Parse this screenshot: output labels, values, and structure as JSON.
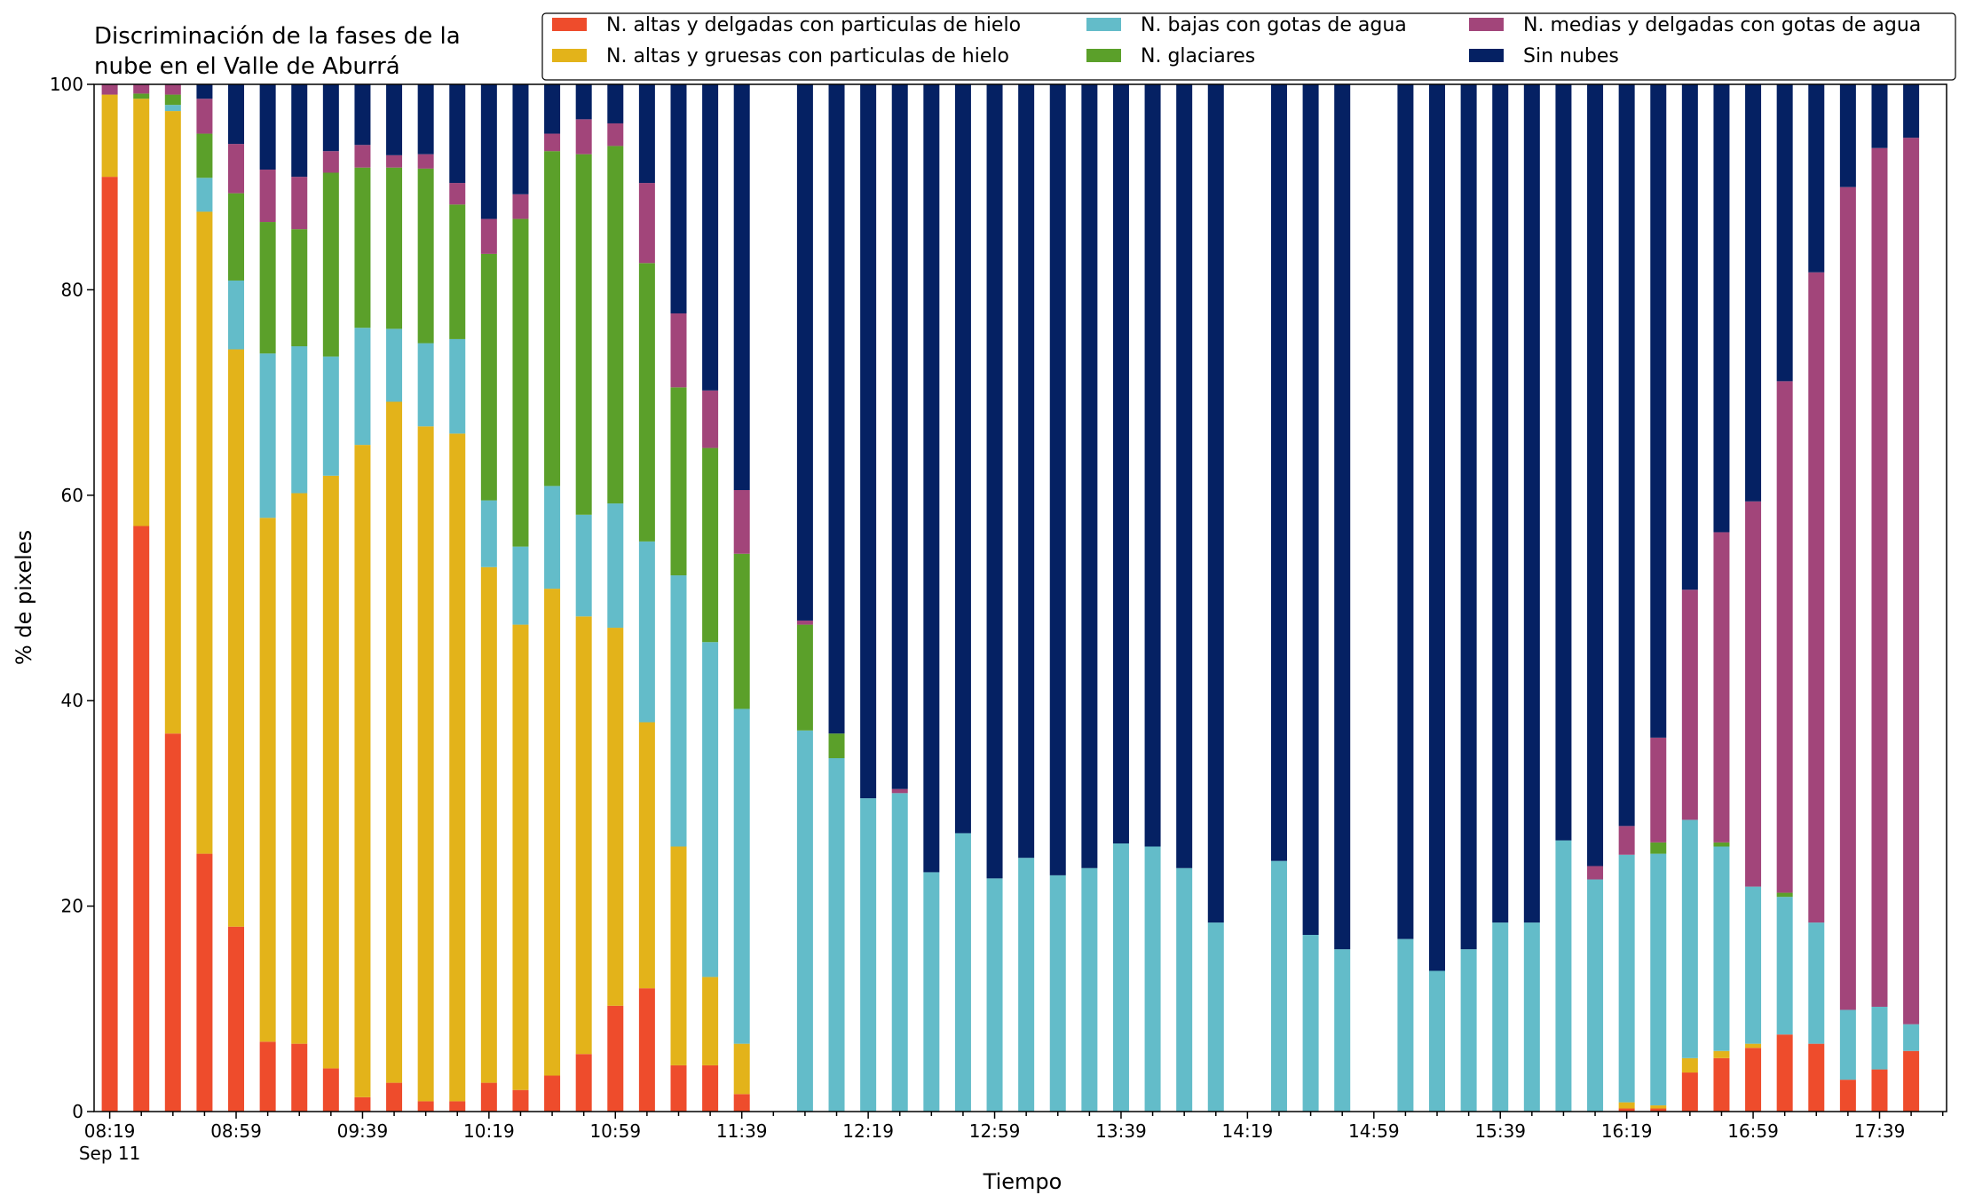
{
  "chart_data": {
    "type": "bar",
    "stacked": true,
    "title_lines": [
      "Discriminación de la fases de la",
      "nube en el Valle de Aburrá"
    ],
    "xlabel": "Tiempo",
    "ylabel": "% de pixeles",
    "ylim": [
      0,
      100
    ],
    "yticks": [
      0,
      20,
      40,
      60,
      80,
      100
    ],
    "grid": false,
    "legend_position": "top-right",
    "x_start": "08:19",
    "x_step_minutes": 10,
    "x_end": "17:59",
    "xtick_labels": [
      {
        "text": "08:19",
        "sub": "Sep 11"
      },
      {
        "text": "08:59"
      },
      {
        "text": "09:39"
      },
      {
        "text": "10:19"
      },
      {
        "text": "10:59"
      },
      {
        "text": "11:39"
      },
      {
        "text": "12:19"
      },
      {
        "text": "12:59"
      },
      {
        "text": "13:39"
      },
      {
        "text": "14:19"
      },
      {
        "text": "14:59"
      },
      {
        "text": "15:39"
      },
      {
        "text": "16:19"
      },
      {
        "text": "16:59"
      },
      {
        "text": "17:39"
      }
    ],
    "series_order": [
      "altas_delgadas",
      "altas_gruesas",
      "bajas",
      "glaciares",
      "medias",
      "sin_nubes"
    ],
    "series": [
      {
        "key": "altas_delgadas",
        "name": "N. altas y delgadas con particulas de hielo",
        "color": "#ee4c2c"
      },
      {
        "key": "altas_gruesas",
        "name": "N. altas y gruesas con particulas de hielo",
        "color": "#e3b31a"
      },
      {
        "key": "bajas",
        "name": "N. bajas con gotas de agua",
        "color": "#63bcc9"
      },
      {
        "key": "glaciares",
        "name": "N. glaciares",
        "color": "#5ba02a"
      },
      {
        "key": "medias",
        "name": "N. medias y delgadas con gotas de agua",
        "color": "#a2457a"
      },
      {
        "key": "sin_nubes",
        "name": "Sin nubes",
        "color": "#052163"
      }
    ],
    "legend_layout": [
      [
        "altas_delgadas",
        "altas_gruesas"
      ],
      [
        "bajas",
        "glaciares"
      ],
      [
        "medias",
        "sin_nubes"
      ]
    ],
    "bars": [
      {
        "time": "08:19",
        "values": [
          91.0,
          8.0,
          0.0,
          0.0,
          1.0,
          0.0
        ]
      },
      {
        "time": "08:29",
        "values": [
          57.0,
          41.6,
          0.0,
          0.5,
          0.9,
          0.0
        ]
      },
      {
        "time": "08:39",
        "values": [
          36.8,
          60.6,
          0.6,
          1.0,
          1.0,
          0.0
        ]
      },
      {
        "time": "08:49",
        "values": [
          25.1,
          62.5,
          3.3,
          4.3,
          3.4,
          1.4
        ]
      },
      {
        "time": "08:59",
        "values": [
          18.0,
          56.2,
          6.7,
          8.5,
          4.8,
          5.8
        ]
      },
      {
        "time": "09:09",
        "values": [
          6.8,
          51.0,
          16.0,
          12.8,
          5.1,
          8.3
        ]
      },
      {
        "time": "09:19",
        "values": [
          6.6,
          53.6,
          14.3,
          11.4,
          5.1,
          9.0
        ]
      },
      {
        "time": "09:29",
        "values": [
          4.2,
          57.7,
          11.6,
          17.9,
          2.1,
          6.5
        ]
      },
      {
        "time": "09:39",
        "values": [
          1.4,
          63.5,
          11.4,
          15.6,
          2.2,
          5.9
        ]
      },
      {
        "time": "09:49",
        "values": [
          2.8,
          66.3,
          7.1,
          15.7,
          1.2,
          6.9
        ]
      },
      {
        "time": "09:59",
        "values": [
          1.0,
          65.7,
          8.1,
          17.0,
          1.4,
          6.8
        ]
      },
      {
        "time": "10:09",
        "values": [
          1.0,
          65.0,
          9.2,
          13.1,
          2.1,
          9.6
        ]
      },
      {
        "time": "10:19",
        "values": [
          2.8,
          50.2,
          6.5,
          24.0,
          3.4,
          13.1
        ]
      },
      {
        "time": "10:29",
        "values": [
          2.1,
          45.3,
          7.6,
          31.9,
          2.4,
          10.7
        ]
      },
      {
        "time": "10:39",
        "values": [
          3.5,
          47.4,
          10.0,
          32.6,
          1.7,
          4.8
        ]
      },
      {
        "time": "10:49",
        "values": [
          5.6,
          42.6,
          9.9,
          35.1,
          3.4,
          3.4
        ]
      },
      {
        "time": "10:59",
        "values": [
          10.3,
          36.8,
          12.1,
          34.8,
          2.2,
          3.8
        ]
      },
      {
        "time": "11:09",
        "values": [
          12.0,
          25.9,
          17.6,
          27.1,
          7.8,
          9.6
        ]
      },
      {
        "time": "11:19",
        "values": [
          4.5,
          21.3,
          26.4,
          18.3,
          7.2,
          22.3
        ]
      },
      {
        "time": "11:29",
        "values": [
          4.5,
          8.6,
          32.6,
          18.9,
          5.6,
          29.8
        ]
      },
      {
        "time": "11:39",
        "values": [
          1.7,
          4.9,
          32.6,
          15.1,
          6.2,
          39.5
        ]
      },
      {
        "time": "11:49",
        "values": [
          0,
          0,
          0,
          0,
          0,
          0
        ]
      },
      {
        "time": "11:59",
        "values": [
          0.0,
          0.0,
          37.1,
          10.3,
          0.4,
          52.2
        ]
      },
      {
        "time": "12:09",
        "values": [
          0.0,
          0.0,
          34.4,
          2.4,
          0.0,
          63.2
        ]
      },
      {
        "time": "12:19",
        "values": [
          0.0,
          0.0,
          30.5,
          0.0,
          0.0,
          69.5
        ]
      },
      {
        "time": "12:29",
        "values": [
          0.0,
          0.0,
          31.0,
          0.0,
          0.4,
          68.6
        ]
      },
      {
        "time": "12:39",
        "values": [
          0.0,
          0.0,
          23.3,
          0.0,
          0.0,
          76.7
        ]
      },
      {
        "time": "12:49",
        "values": [
          0.0,
          0.0,
          27.1,
          0.0,
          0.0,
          72.9
        ]
      },
      {
        "time": "12:59",
        "values": [
          0.0,
          0.0,
          22.7,
          0.0,
          0.0,
          77.3
        ]
      },
      {
        "time": "13:09",
        "values": [
          0.0,
          0.0,
          24.7,
          0.0,
          0.0,
          75.3
        ]
      },
      {
        "time": "13:19",
        "values": [
          0.0,
          0.0,
          23.0,
          0.0,
          0.0,
          77.0
        ]
      },
      {
        "time": "13:29",
        "values": [
          0.0,
          0.0,
          23.7,
          0.0,
          0.0,
          76.3
        ]
      },
      {
        "time": "13:39",
        "values": [
          0.0,
          0.0,
          26.1,
          0.0,
          0.0,
          73.9
        ]
      },
      {
        "time": "13:49",
        "values": [
          0.0,
          0.0,
          25.8,
          0.0,
          0.0,
          74.2
        ]
      },
      {
        "time": "13:59",
        "values": [
          0.0,
          0.0,
          23.7,
          0.0,
          0.0,
          76.3
        ]
      },
      {
        "time": "14:09",
        "values": [
          0.0,
          0.0,
          18.4,
          0.0,
          0.0,
          81.6
        ]
      },
      {
        "time": "14:19",
        "values": [
          0,
          0,
          0,
          0,
          0,
          0
        ]
      },
      {
        "time": "14:29",
        "values": [
          0.0,
          0.0,
          24.4,
          0.0,
          0.0,
          75.6
        ]
      },
      {
        "time": "14:39",
        "values": [
          0.0,
          0.0,
          17.2,
          0.0,
          0.0,
          82.8
        ]
      },
      {
        "time": "14:49",
        "values": [
          0.0,
          0.0,
          15.8,
          0.0,
          0.0,
          84.2
        ]
      },
      {
        "time": "14:59",
        "values": [
          0,
          0,
          0,
          0,
          0,
          0
        ]
      },
      {
        "time": "15:09",
        "values": [
          0.0,
          0.0,
          16.8,
          0.0,
          0.0,
          83.2
        ]
      },
      {
        "time": "15:19",
        "values": [
          0.0,
          0.0,
          13.7,
          0.0,
          0.0,
          86.3
        ]
      },
      {
        "time": "15:29",
        "values": [
          0.0,
          0.0,
          15.8,
          0.0,
          0.0,
          84.2
        ]
      },
      {
        "time": "15:39",
        "values": [
          0.0,
          0.0,
          18.4,
          0.0,
          0.0,
          81.6
        ]
      },
      {
        "time": "15:49",
        "values": [
          0.0,
          0.0,
          18.4,
          0.0,
          0.0,
          81.6
        ]
      },
      {
        "time": "15:59",
        "values": [
          0.0,
          0.0,
          26.4,
          0.0,
          0.0,
          73.6
        ]
      },
      {
        "time": "16:09",
        "values": [
          0.0,
          0.0,
          22.6,
          0.0,
          1.3,
          76.1
        ]
      },
      {
        "time": "16:19",
        "values": [
          0.3,
          0.6,
          24.1,
          0.0,
          2.8,
          72.2
        ]
      },
      {
        "time": "16:29",
        "values": [
          0.3,
          0.3,
          24.5,
          1.1,
          10.2,
          63.6
        ]
      },
      {
        "time": "16:39",
        "values": [
          3.8,
          1.4,
          23.2,
          0.0,
          22.4,
          49.2
        ]
      },
      {
        "time": "16:49",
        "values": [
          5.2,
          0.7,
          19.9,
          0.4,
          30.2,
          43.6
        ]
      },
      {
        "time": "16:59",
        "values": [
          6.2,
          0.4,
          15.3,
          0.0,
          37.5,
          40.6
        ]
      },
      {
        "time": "17:09",
        "values": [
          7.5,
          0.0,
          13.4,
          0.4,
          49.8,
          28.9
        ]
      },
      {
        "time": "17:19",
        "values": [
          6.6,
          0.0,
          11.8,
          0.0,
          63.3,
          18.3
        ]
      },
      {
        "time": "17:29",
        "values": [
          3.1,
          0.0,
          6.8,
          0.0,
          80.1,
          10.0
        ]
      },
      {
        "time": "17:39",
        "values": [
          4.1,
          0.0,
          6.1,
          0.0,
          83.6,
          6.2
        ]
      },
      {
        "time": "17:49",
        "values": [
          5.9,
          0.0,
          2.6,
          0.0,
          86.3,
          5.2
        ]
      }
    ]
  }
}
